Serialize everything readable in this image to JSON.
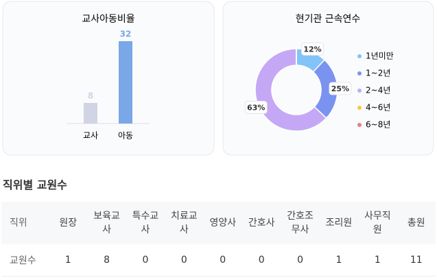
{
  "chart_data": [
    {
      "type": "bar",
      "title": "교사아동비율",
      "categories": [
        "교사",
        "아동"
      ],
      "values": [
        8,
        32
      ],
      "colors": [
        "#d0d4e4",
        "#79a7e8"
      ]
    },
    {
      "type": "pie",
      "title": "현기관 근속연수",
      "categories": [
        "1년미만",
        "1~2년",
        "2~4년",
        "4~6년",
        "6~8년"
      ],
      "values": [
        12,
        25,
        63,
        0,
        0
      ],
      "value_labels": [
        "12%",
        "25%",
        "63%",
        null,
        null
      ],
      "colors": [
        "#82c4f8",
        "#7b93f0",
        "#c5a8f5",
        "#f5c842",
        "#f07a7a"
      ],
      "donut": true
    }
  ],
  "table": {
    "title": "직위별 교원수",
    "header": [
      "직위",
      "원장",
      "보육교사",
      "특수교사",
      "치료교사",
      "영양사",
      "간호사",
      "간호조무사",
      "조리원",
      "사무직원",
      "총원"
    ],
    "rows": [
      [
        "교원수",
        1,
        8,
        0,
        0,
        0,
        0,
        0,
        1,
        1,
        11
      ]
    ]
  }
}
